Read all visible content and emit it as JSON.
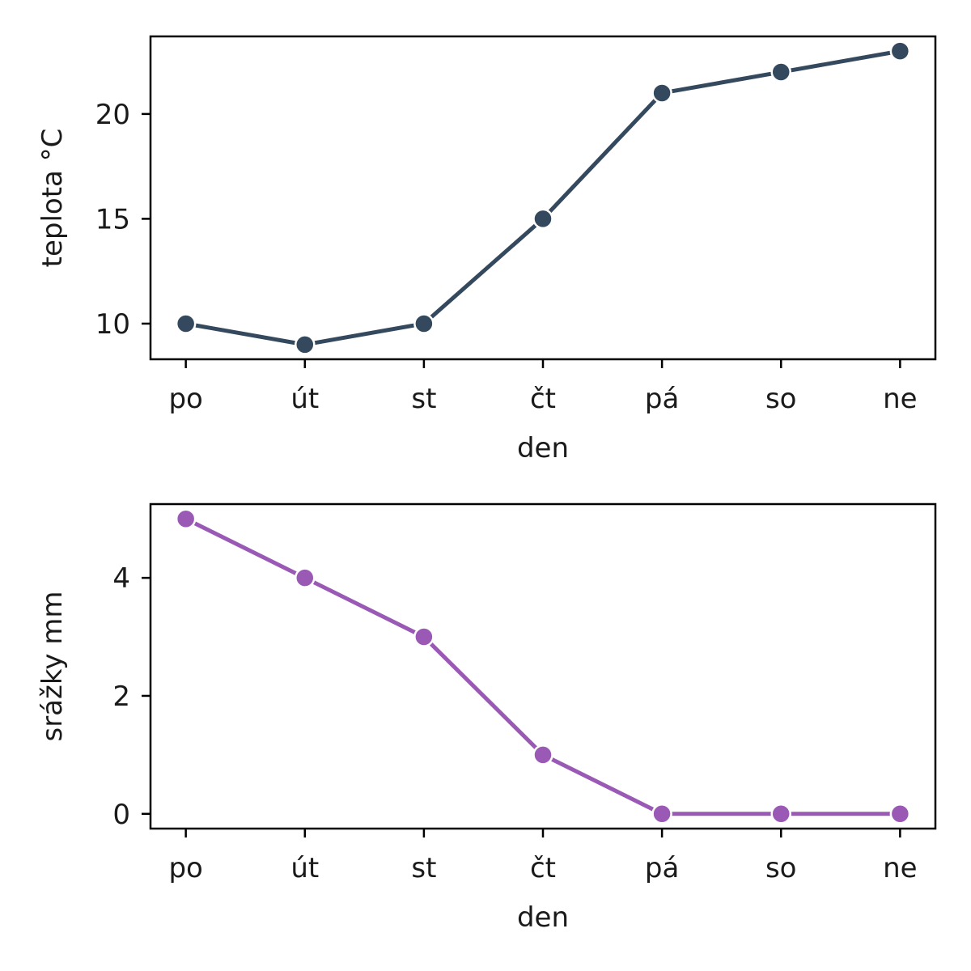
{
  "chart_data": [
    {
      "type": "line",
      "categories": [
        "po",
        "út",
        "st",
        "čt",
        "pá",
        "so",
        "ne"
      ],
      "series": [
        {
          "values": [
            10,
            9,
            10,
            15,
            21,
            22,
            23
          ],
          "color": "#34495e"
        }
      ],
      "xlabel": "den",
      "ylabel": "teplota °C",
      "ylim": [
        8.3,
        23.7
      ],
      "yticks": [
        10,
        15,
        20
      ],
      "grid": false,
      "markers": "circle"
    },
    {
      "type": "line",
      "categories": [
        "po",
        "út",
        "st",
        "čt",
        "pá",
        "so",
        "ne"
      ],
      "series": [
        {
          "values": [
            5,
            4,
            3,
            1,
            0,
            0,
            0
          ],
          "color": "#9b59b6"
        }
      ],
      "xlabel": "den",
      "ylabel": "srážky mm",
      "ylim": [
        -0.25,
        5.25
      ],
      "yticks": [
        0,
        2,
        4
      ],
      "grid": false,
      "markers": "circle"
    }
  ]
}
